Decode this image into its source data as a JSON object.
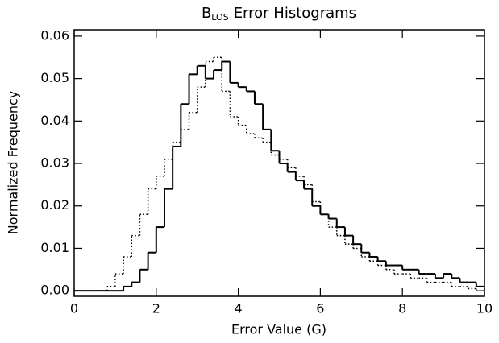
{
  "chart_data": {
    "type": "histogram",
    "title_parts": {
      "main": "B",
      "sub": "LOS",
      "rest": "Error Histograms"
    },
    "xlabel": "Error Value (G)",
    "ylabel": "Normalized Frequency",
    "bins": [
      0,
      0.2,
      0.4,
      0.6,
      0.8,
      1.0,
      1.2,
      1.4,
      1.6,
      1.8,
      2.0,
      2.2,
      2.4,
      2.6,
      2.8,
      3.0,
      3.2,
      3.4,
      3.6,
      3.8,
      4.0,
      4.2,
      4.4,
      4.6,
      4.8,
      5.0,
      5.2,
      5.4,
      5.6,
      5.8,
      6.0,
      6.2,
      6.4,
      6.6,
      6.8,
      7.0,
      7.2,
      7.4,
      7.6,
      7.8,
      8.0,
      8.2,
      8.4,
      8.6,
      8.8,
      9.0,
      9.2,
      9.4,
      9.6,
      9.8,
      10.0
    ],
    "series": [
      {
        "color": "#000000",
        "dash": "solid",
        "values": [
          0,
          0,
          0,
          0,
          0,
          0,
          0.001,
          0.002,
          0.005,
          0.009,
          0.015,
          0.024,
          0.034,
          0.044,
          0.051,
          0.053,
          0.05,
          0.052,
          0.054,
          0.049,
          0.048,
          0.047,
          0.044,
          0.038,
          0.033,
          0.03,
          0.028,
          0.026,
          0.024,
          0.02,
          0.018,
          0.017,
          0.015,
          0.013,
          0.011,
          0.009,
          0.008,
          0.007,
          0.006,
          0.006,
          0.005,
          0.005,
          0.004,
          0.004,
          0.003,
          0.004,
          0.003,
          0.002,
          0.002,
          0.001
        ]
      },
      {
        "color": "#000000",
        "dash": "dotted",
        "values": [
          0,
          0,
          0,
          0,
          0.001,
          0.004,
          0.008,
          0.013,
          0.018,
          0.024,
          0.027,
          0.031,
          0.035,
          0.038,
          0.042,
          0.048,
          0.054,
          0.055,
          0.047,
          0.041,
          0.039,
          0.037,
          0.036,
          0.035,
          0.032,
          0.031,
          0.029,
          0.027,
          0.025,
          0.021,
          0.018,
          0.015,
          0.013,
          0.011,
          0.01,
          0.008,
          0.007,
          0.006,
          0.005,
          0.004,
          0.004,
          0.003,
          0.003,
          0.002,
          0.002,
          0.002,
          0.001,
          0.001,
          0.0005,
          0
        ]
      }
    ],
    "xlim": [
      0,
      10
    ],
    "xticks": [
      0,
      2,
      4,
      6,
      8,
      10
    ],
    "ylim": [
      -0.0013,
      0.0615
    ],
    "yticks": [
      {
        "value": 0,
        "label": "0.00"
      },
      {
        "value": 0.01,
        "label": "0.01"
      },
      {
        "value": 0.02,
        "label": "0.02"
      },
      {
        "value": 0.03,
        "label": "0.03"
      },
      {
        "value": 0.04,
        "label": "0.04"
      },
      {
        "value": 0.05,
        "label": "0.05"
      },
      {
        "value": 0.06,
        "label": "0.06"
      }
    ]
  }
}
